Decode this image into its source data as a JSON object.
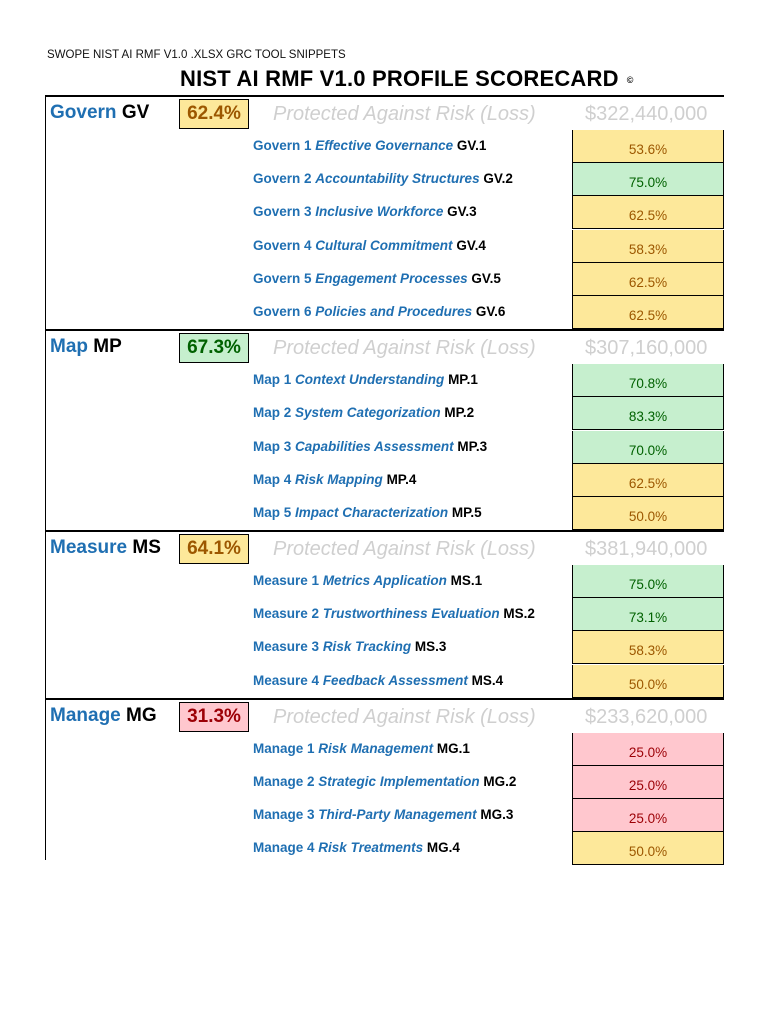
{
  "header": {
    "doc_title": "SWOPE NIST AI RMF V1.0 .XLSX GRC TOOL SNIPPETS",
    "main_title": "NIST AI RMF V1.0 PROFILE SCORECARD",
    "copyright": "©"
  },
  "colors": {
    "blue_text": "#1f6fb2",
    "amber_fill": "#fde89a",
    "amber_text": "#9c5700",
    "green_fill": "#c6efce",
    "green_text": "#006100",
    "red_fill": "#ffc7ce",
    "red_text": "#9c0006",
    "faded_text": "#cfcfcf"
  },
  "sections": [
    {
      "word": "Govern",
      "abbr": "GV",
      "pct": "62.4%",
      "status": "amber",
      "protect": "Protected Against Risk (Loss)",
      "money": "$322,440,000",
      "rows": [
        {
          "pre": "Govern 1",
          "name": "Effective Governance",
          "code": "GV.1",
          "val": "53.6%",
          "status": "amber"
        },
        {
          "pre": "Govern 2",
          "name": "Accountability Structures",
          "code": "GV.2",
          "val": "75.0%",
          "status": "green"
        },
        {
          "pre": "Govern 3",
          "name": "Inclusive Workforce",
          "code": "GV.3",
          "val": "62.5%",
          "status": "amber"
        },
        {
          "pre": "Govern 4",
          "name": "Cultural Commitment",
          "code": "GV.4",
          "val": "58.3%",
          "status": "amber"
        },
        {
          "pre": "Govern 5",
          "name": "Engagement Processes",
          "code": "GV.5",
          "val": "62.5%",
          "status": "amber"
        },
        {
          "pre": "Govern 6",
          "name": "Policies and Procedures",
          "code": "GV.6",
          "val": "62.5%",
          "status": "amber"
        }
      ]
    },
    {
      "word": "Map",
      "abbr": "MP",
      "pct": "67.3%",
      "status": "green",
      "protect": "Protected Against Risk (Loss)",
      "money": "$307,160,000",
      "rows": [
        {
          "pre": "Map 1",
          "name": "Context Understanding",
          "code": "MP.1",
          "val": "70.8%",
          "status": "green"
        },
        {
          "pre": "Map 2",
          "name": "System Categorization",
          "code": "MP.2",
          "val": "83.3%",
          "status": "green"
        },
        {
          "pre": "Map 3",
          "name": "Capabilities Assessment",
          "code": "MP.3",
          "val": "70.0%",
          "status": "green"
        },
        {
          "pre": "Map 4",
          "name": "Risk Mapping",
          "code": "MP.4",
          "val": "62.5%",
          "status": "amber"
        },
        {
          "pre": "Map 5",
          "name": "Impact Characterization",
          "code": "MP.5",
          "val": "50.0%",
          "status": "amber"
        }
      ]
    },
    {
      "word": "Measure",
      "abbr": "MS",
      "pct": "64.1%",
      "status": "amber",
      "protect": "Protected Against Risk (Loss)",
      "money": "$381,940,000",
      "rows": [
        {
          "pre": "Measure 1",
          "name": "Metrics Application",
          "code": "MS.1",
          "val": "75.0%",
          "status": "green"
        },
        {
          "pre": "Measure 2",
          "name": "Trustworthiness Evaluation",
          "code": "MS.2",
          "val": "73.1%",
          "status": "green"
        },
        {
          "pre": "Measure 3",
          "name": "Risk Tracking",
          "code": "MS.3",
          "val": "58.3%",
          "status": "amber"
        },
        {
          "pre": "Measure 4",
          "name": "Feedback Assessment",
          "code": "MS.4",
          "val": "50.0%",
          "status": "amber"
        }
      ]
    },
    {
      "word": "Manage",
      "abbr": "MG",
      "pct": "31.3%",
      "status": "red",
      "protect": "Protected Against Risk (Loss)",
      "money": "$233,620,000",
      "rows": [
        {
          "pre": "Manage 1",
          "name": "Risk Management",
          "code": "MG.1",
          "val": "25.0%",
          "status": "red"
        },
        {
          "pre": "Manage 2",
          "name": "Strategic Implementation",
          "code": "MG.2",
          "val": "25.0%",
          "status": "red"
        },
        {
          "pre": "Manage 3",
          "name": "Third-Party Management",
          "code": "MG.3",
          "val": "25.0%",
          "status": "red"
        },
        {
          "pre": "Manage 4",
          "name": "Risk Treatments",
          "code": "MG.4",
          "val": "50.0%",
          "status": "amber"
        }
      ]
    }
  ]
}
